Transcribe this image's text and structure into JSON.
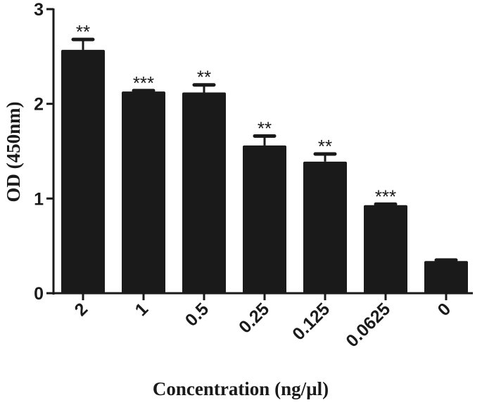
{
  "chart_data": {
    "type": "bar",
    "categories": [
      "2",
      "1",
      "0.5",
      "0.25",
      "0.125",
      "0.0625",
      "0"
    ],
    "values": [
      2.57,
      2.13,
      2.12,
      1.56,
      1.39,
      0.93,
      0.34
    ],
    "error_upper": [
      2.68,
      2.14,
      2.2,
      1.66,
      1.47,
      0.94,
      0.35
    ],
    "annotations": [
      "**",
      "***",
      "**",
      "**",
      "**",
      "***",
      ""
    ],
    "xlabel": "Concentration (ng/µl)",
    "ylabel": "OD (450nm)",
    "ylim": [
      0,
      3
    ],
    "yticks": [
      "0",
      "1",
      "2",
      "3"
    ],
    "grid": false,
    "bar_color": "#1a1a1a"
  }
}
